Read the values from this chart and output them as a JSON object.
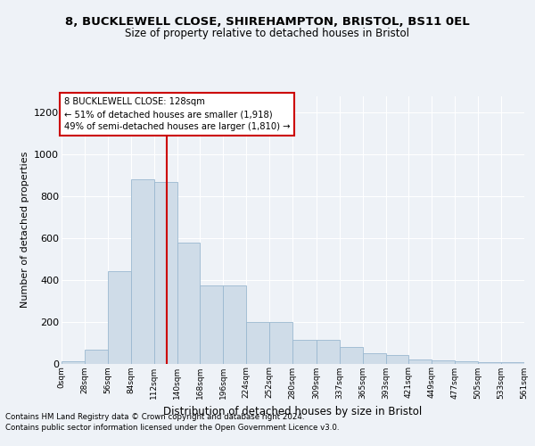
{
  "title1": "8, BUCKLEWELL CLOSE, SHIREHAMPTON, BRISTOL, BS11 0EL",
  "title2": "Size of property relative to detached houses in Bristol",
  "xlabel": "Distribution of detached houses by size in Bristol",
  "ylabel": "Number of detached properties",
  "bar_color": "#cfdce8",
  "bar_edge_color": "#9ab8d0",
  "bar_heights": [
    12,
    65,
    440,
    880,
    870,
    580,
    375,
    375,
    200,
    200,
    115,
    115,
    80,
    50,
    40,
    20,
    15,
    12,
    8,
    5
  ],
  "bin_edges": [
    0,
    28,
    56,
    84,
    112,
    140,
    168,
    196,
    224,
    252,
    280,
    309,
    337,
    365,
    393,
    421,
    449,
    477,
    505,
    533,
    561
  ],
  "tick_labels": [
    "0sqm",
    "28sqm",
    "56sqm",
    "84sqm",
    "112sqm",
    "140sqm",
    "168sqm",
    "196sqm",
    "224sqm",
    "252sqm",
    "280sqm",
    "309sqm",
    "337sqm",
    "365sqm",
    "393sqm",
    "421sqm",
    "449sqm",
    "477sqm",
    "505sqm",
    "533sqm",
    "561sqm"
  ],
  "ylim": [
    0,
    1280
  ],
  "yticks": [
    0,
    200,
    400,
    600,
    800,
    1000,
    1200
  ],
  "vline_x": 128,
  "vline_color": "#cc0000",
  "annotation_title": "8 BUCKLEWELL CLOSE: 128sqm",
  "annotation_line2": "← 51% of detached houses are smaller (1,918)",
  "annotation_line3": "49% of semi-detached houses are larger (1,810) →",
  "annotation_box_color": "#ffffff",
  "annotation_box_edge": "#cc0000",
  "footer1": "Contains HM Land Registry data © Crown copyright and database right 2024.",
  "footer2": "Contains public sector information licensed under the Open Government Licence v3.0.",
  "bg_color": "#eef2f7",
  "plot_bg_color": "#eef2f7",
  "grid_color": "#ffffff"
}
